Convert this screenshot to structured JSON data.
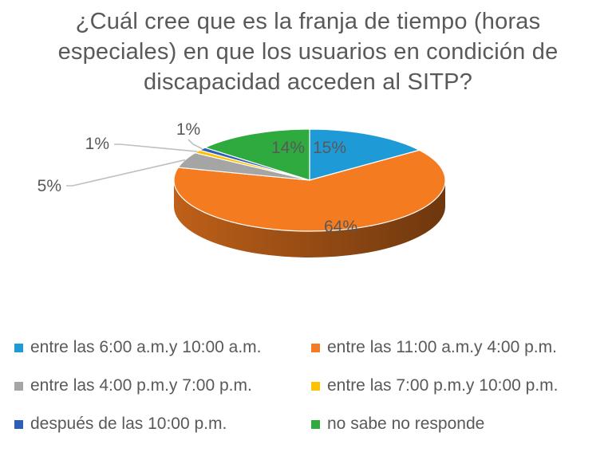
{
  "chart_data": {
    "type": "pie",
    "style": "3d",
    "title": "¿Cuál cree que es la franja de tiempo (horas especiales) en que los usuarios en condición de discapacidad acceden al SITP?",
    "title_lines": [
      "¿Cuál cree que es la franja de tiempo (horas",
      "especiales) en que los usuarios en condición de",
      "discapacidad acceden al SITP?"
    ],
    "legend_position": "bottom",
    "slices": [
      {
        "label": "entre las 6:00 a.m.y 10:00 a.m.",
        "value": 15,
        "value_label": "15%",
        "color": "#1E9BD7"
      },
      {
        "label": "entre las 11:00 a.m.y 4:00 p.m.",
        "value": 64,
        "value_label": "64%",
        "color": "#F47B20"
      },
      {
        "label": "entre las 4:00 p.m.y 7:00 p.m.",
        "value": 5,
        "value_label": "5%",
        "color": "#A5A5A5"
      },
      {
        "label": "entre las 7:00 p.m.y 10:00 p.m.",
        "value": 1,
        "value_label": "1%",
        "color": "#FFC000"
      },
      {
        "label": "después de las 10:00 p.m.",
        "value": 1,
        "value_label": "1%",
        "color": "#2E5FB8"
      },
      {
        "label": "no sabe no responde",
        "value": 14,
        "value_label": "14%",
        "color": "#2EAA3E"
      }
    ]
  }
}
